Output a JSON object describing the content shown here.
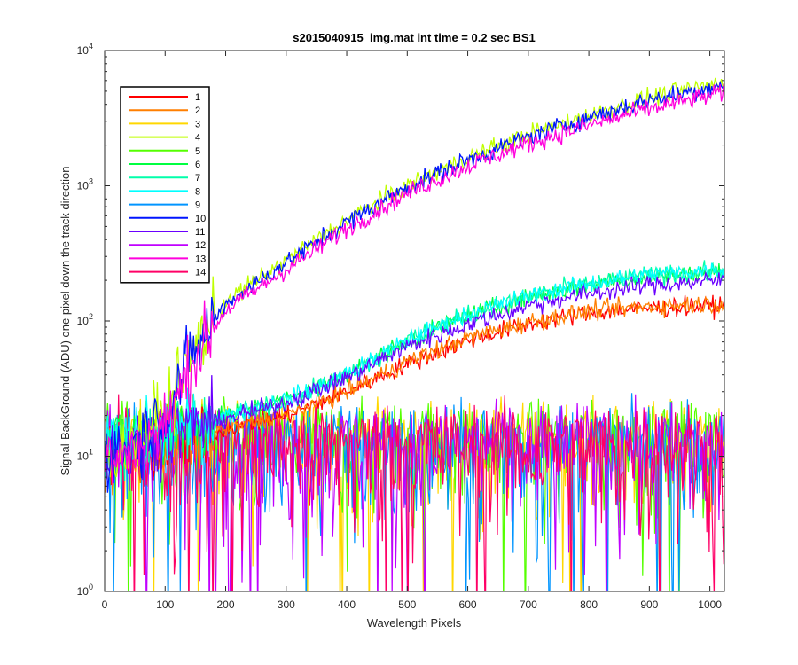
{
  "chart_data": {
    "type": "line",
    "title": "s2015040915_img.mat int time = 0.2 sec   BS1",
    "xlabel": "Wavelength Pixels",
    "ylabel": "Signal-BackGround (ADU) one pixel down the track direction",
    "xlim": [
      0,
      1024
    ],
    "ylim": [
      1,
      10000
    ],
    "yscale": "log",
    "grid": false,
    "legend_position": "top-left",
    "x_ticks": [
      0,
      100,
      200,
      300,
      400,
      500,
      600,
      700,
      800,
      900,
      1000
    ],
    "y_ticks": [
      {
        "value": 1,
        "base": "10",
        "exp": "0"
      },
      {
        "value": 10,
        "base": "10",
        "exp": "1"
      },
      {
        "value": 100,
        "base": "10",
        "exp": "2"
      },
      {
        "value": 1000,
        "base": "10",
        "exp": "3"
      },
      {
        "value": 10000,
        "base": "10",
        "exp": "4"
      }
    ],
    "series": [
      {
        "name": "1",
        "color": "#ff0000",
        "group": "mid",
        "anchors": [
          [
            0,
            10
          ],
          [
            120,
            13
          ],
          [
            200,
            16
          ],
          [
            300,
            20
          ],
          [
            400,
            30
          ],
          [
            500,
            48
          ],
          [
            600,
            72
          ],
          [
            700,
            95
          ],
          [
            800,
            115
          ],
          [
            900,
            125
          ],
          [
            1024,
            130
          ]
        ]
      },
      {
        "name": "2",
        "color": "#ff7f00",
        "group": "mid",
        "anchors": [
          [
            0,
            10
          ],
          [
            120,
            13
          ],
          [
            200,
            16
          ],
          [
            300,
            20
          ],
          [
            400,
            30
          ],
          [
            500,
            50
          ],
          [
            600,
            75
          ],
          [
            700,
            98
          ],
          [
            800,
            118
          ],
          [
            900,
            128
          ],
          [
            1024,
            135
          ]
        ]
      },
      {
        "name": "3",
        "color": "#ffd700",
        "group": "low",
        "anchors": [
          [
            0,
            13
          ],
          [
            200,
            13
          ],
          [
            400,
            13
          ],
          [
            600,
            13
          ],
          [
            800,
            13
          ],
          [
            1024,
            13
          ]
        ]
      },
      {
        "name": "4",
        "color": "#bfff00",
        "group": "high",
        "anchors": [
          [
            0,
            10
          ],
          [
            50,
            13
          ],
          [
            100,
            22
          ],
          [
            150,
            65
          ],
          [
            200,
            140
          ],
          [
            300,
            280
          ],
          [
            400,
            560
          ],
          [
            500,
            1000
          ],
          [
            600,
            1600
          ],
          [
            700,
            2400
          ],
          [
            800,
            3300
          ],
          [
            900,
            4500
          ],
          [
            1024,
            5800
          ]
        ]
      },
      {
        "name": "5",
        "color": "#55ff00",
        "group": "low",
        "anchors": [
          [
            0,
            13
          ],
          [
            200,
            13
          ],
          [
            400,
            13
          ],
          [
            600,
            13
          ],
          [
            800,
            13
          ],
          [
            1024,
            13
          ]
        ]
      },
      {
        "name": "6",
        "color": "#00ff40",
        "group": "mid",
        "anchors": [
          [
            0,
            12
          ],
          [
            120,
            16
          ],
          [
            200,
            20
          ],
          [
            300,
            26
          ],
          [
            400,
            40
          ],
          [
            500,
            70
          ],
          [
            600,
            110
          ],
          [
            700,
            150
          ],
          [
            800,
            185
          ],
          [
            900,
            215
          ],
          [
            1024,
            230
          ]
        ]
      },
      {
        "name": "7",
        "color": "#00ffaa",
        "group": "mid",
        "anchors": [
          [
            0,
            12
          ],
          [
            120,
            16
          ],
          [
            200,
            20
          ],
          [
            300,
            26
          ],
          [
            400,
            40
          ],
          [
            500,
            72
          ],
          [
            600,
            112
          ],
          [
            700,
            152
          ],
          [
            800,
            188
          ],
          [
            900,
            218
          ],
          [
            1024,
            235
          ]
        ]
      },
      {
        "name": "8",
        "color": "#00ffff",
        "group": "mid",
        "anchors": [
          [
            0,
            12
          ],
          [
            120,
            16
          ],
          [
            200,
            20
          ],
          [
            300,
            26
          ],
          [
            400,
            40
          ],
          [
            500,
            72
          ],
          [
            600,
            112
          ],
          [
            700,
            152
          ],
          [
            800,
            188
          ],
          [
            900,
            220
          ],
          [
            1024,
            240
          ]
        ]
      },
      {
        "name": "9",
        "color": "#0095ff",
        "group": "low",
        "anchors": [
          [
            0,
            12
          ],
          [
            200,
            12
          ],
          [
            400,
            12
          ],
          [
            600,
            12
          ],
          [
            800,
            12
          ],
          [
            1024,
            12
          ]
        ]
      },
      {
        "name": "10",
        "color": "#0015ff",
        "group": "high",
        "anchors": [
          [
            0,
            10
          ],
          [
            50,
            13
          ],
          [
            100,
            21
          ],
          [
            150,
            62
          ],
          [
            200,
            135
          ],
          [
            300,
            270
          ],
          [
            400,
            540
          ],
          [
            500,
            980
          ],
          [
            600,
            1550
          ],
          [
            700,
            2300
          ],
          [
            800,
            3200
          ],
          [
            900,
            4300
          ],
          [
            1024,
            5600
          ]
        ]
      },
      {
        "name": "11",
        "color": "#6a00ff",
        "group": "mid",
        "anchors": [
          [
            0,
            11
          ],
          [
            120,
            15
          ],
          [
            200,
            19
          ],
          [
            300,
            25
          ],
          [
            400,
            38
          ],
          [
            500,
            65
          ],
          [
            600,
            95
          ],
          [
            700,
            130
          ],
          [
            800,
            160
          ],
          [
            900,
            185
          ],
          [
            1024,
            200
          ]
        ]
      },
      {
        "name": "12",
        "color": "#c000ff",
        "group": "low",
        "anchors": [
          [
            0,
            12
          ],
          [
            200,
            12
          ],
          [
            400,
            12
          ],
          [
            600,
            12
          ],
          [
            800,
            12
          ],
          [
            1024,
            12
          ]
        ]
      },
      {
        "name": "13",
        "color": "#ff00dd",
        "group": "high",
        "anchors": [
          [
            0,
            9
          ],
          [
            50,
            11
          ],
          [
            100,
            17
          ],
          [
            150,
            55
          ],
          [
            200,
            120
          ],
          [
            300,
            240
          ],
          [
            400,
            480
          ],
          [
            500,
            880
          ],
          [
            600,
            1400
          ],
          [
            700,
            2050
          ],
          [
            800,
            2800
          ],
          [
            900,
            3700
          ],
          [
            1024,
            4900
          ]
        ]
      },
      {
        "name": "14",
        "color": "#ff0066",
        "group": "low",
        "anchors": [
          [
            0,
            12
          ],
          [
            200,
            12
          ],
          [
            400,
            12
          ],
          [
            600,
            12
          ],
          [
            800,
            12
          ],
          [
            1024,
            12
          ]
        ]
      }
    ]
  }
}
